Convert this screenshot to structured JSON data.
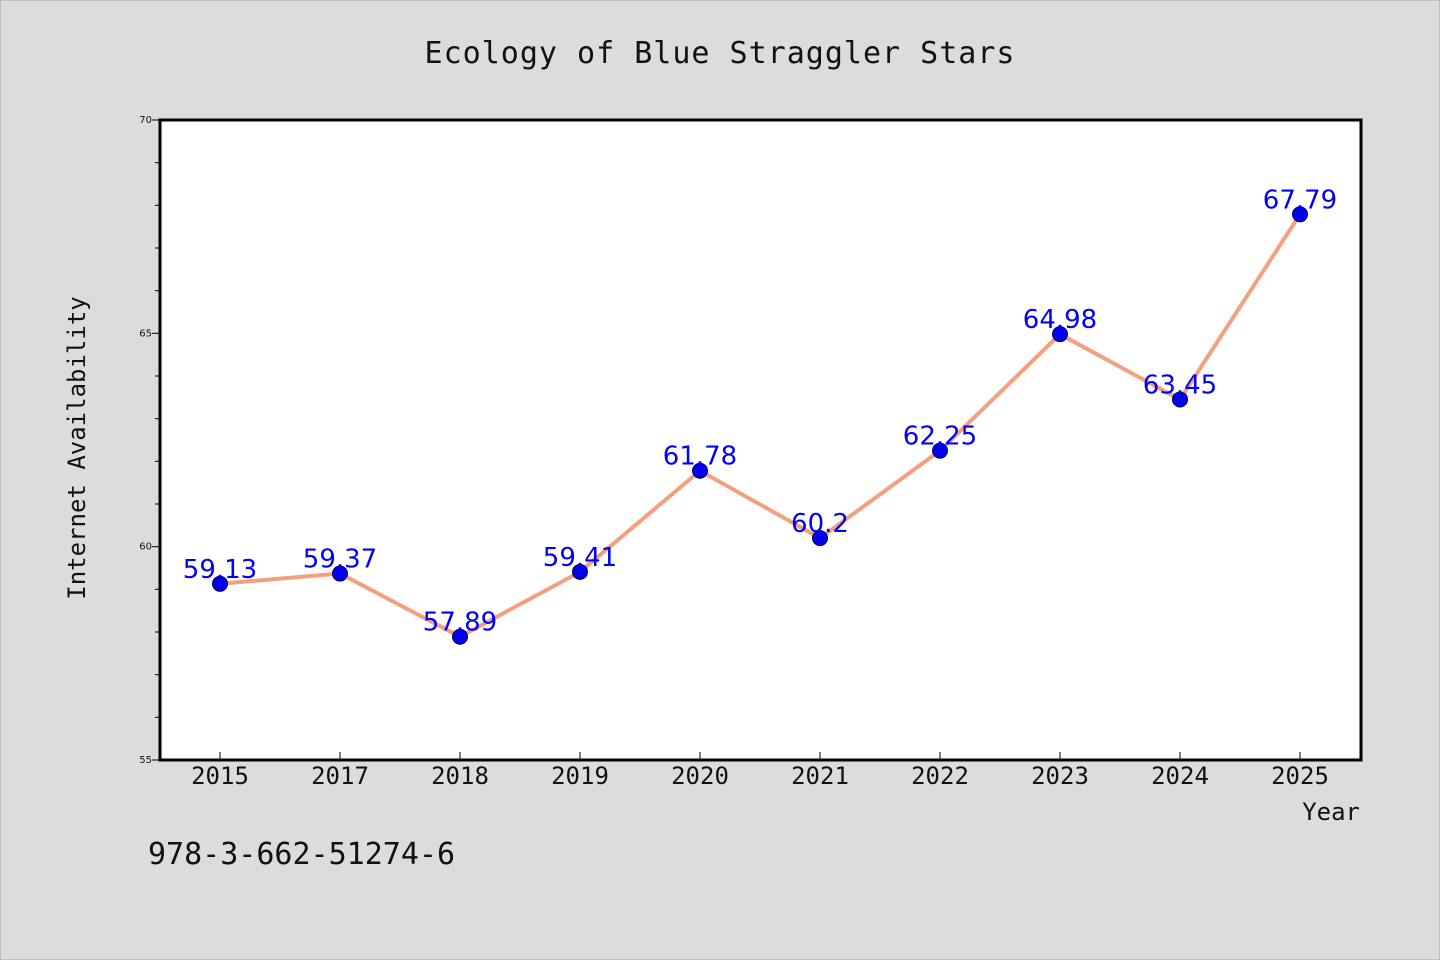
{
  "chart_data": {
    "type": "line",
    "title": "Ecology of Blue Straggler Stars",
    "xlabel": "Year",
    "ylabel": "Internet Availability",
    "categories": [
      "2015",
      "2017",
      "2018",
      "2019",
      "2020",
      "2021",
      "2022",
      "2023",
      "2024",
      "2025"
    ],
    "values": [
      59.13,
      59.37,
      57.89,
      59.41,
      61.78,
      60.2,
      62.25,
      64.98,
      63.45,
      67.79
    ],
    "data_labels": [
      "59.13",
      "59.37",
      "57.89",
      "59.41",
      "61.78",
      "60.2",
      "62.25",
      "64.98",
      "63.45",
      "67.79"
    ],
    "ylim": [
      55,
      70
    ],
    "yticks": [
      "55",
      "60",
      "65",
      "70"
    ],
    "grid": false,
    "line_color": "#f4a07e",
    "marker_color": "#0000ee",
    "label_color": "#0000ff"
  },
  "footer": {
    "isbn": "978-3-662-51274-6"
  }
}
